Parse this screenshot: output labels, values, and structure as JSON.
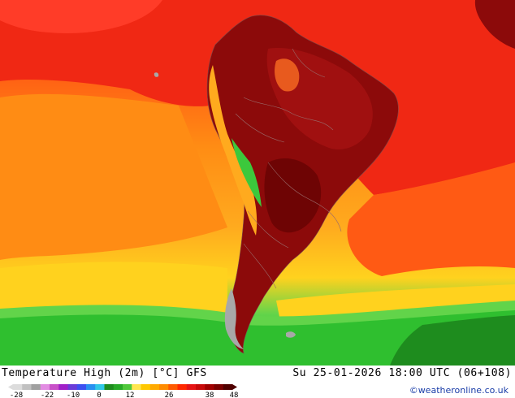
{
  "title": "Temperature High (2m) [°C] GFS",
  "datetime": "Su 25-01-2026 18:00 UTC (06+108)",
  "copyright": "©weatheronline.co.uk",
  "legend": {
    "labels": [
      "-28",
      "-22",
      "-10",
      "0",
      "12",
      "26",
      "38",
      "48"
    ],
    "colors": [
      "#dcdcdc",
      "#c0c0c0",
      "#a0a0a0",
      "#e28ce2",
      "#c850c8",
      "#a020c8",
      "#6a3cd8",
      "#3c50f0",
      "#2890f0",
      "#30c8e6",
      "#1e8c1e",
      "#28aa28",
      "#50c83c",
      "#ffe650",
      "#ffc800",
      "#ffaa00",
      "#ff8c00",
      "#ff5a00",
      "#ff2800",
      "#e61414",
      "#c80a0a",
      "#a00000",
      "#7a0000",
      "#500000"
    ]
  },
  "map": {
    "ocean_colors": {
      "green": "#2fbf2f",
      "light_green": "#62d44a",
      "yellow": "#ffd21e",
      "orange_light": "#ffaa1e",
      "orange": "#ff8c14",
      "orange_red": "#ff5a14",
      "red": "#f02814"
    },
    "land_colors": {
      "dark": "#8c0a0a",
      "darker": "#780505",
      "mid": "#b41414",
      "andes_green": "#3cc83c",
      "patagonia_gray": "#a8a8a8"
    }
  }
}
